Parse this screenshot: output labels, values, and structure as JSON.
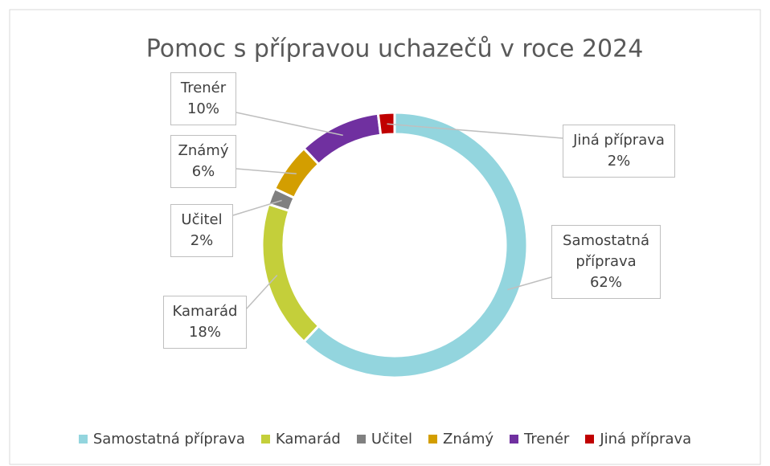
{
  "chart_data": {
    "type": "donut",
    "title": "Pomoc s přípravou uchazečů v roce 2024",
    "categories": [
      "Samostatná příprava",
      "Kamarád",
      "Učitel",
      "Známý",
      "Trenér",
      "Jiná příprava"
    ],
    "values": [
      62,
      18,
      2,
      6,
      10,
      2
    ],
    "value_labels": [
      "62%",
      "18%",
      "2%",
      "6%",
      "10%",
      "2%"
    ],
    "colors": [
      "#93d5de",
      "#c4cf3a",
      "#808080",
      "#d39e00",
      "#7030a0",
      "#c00000"
    ],
    "legend": "bottom"
  }
}
